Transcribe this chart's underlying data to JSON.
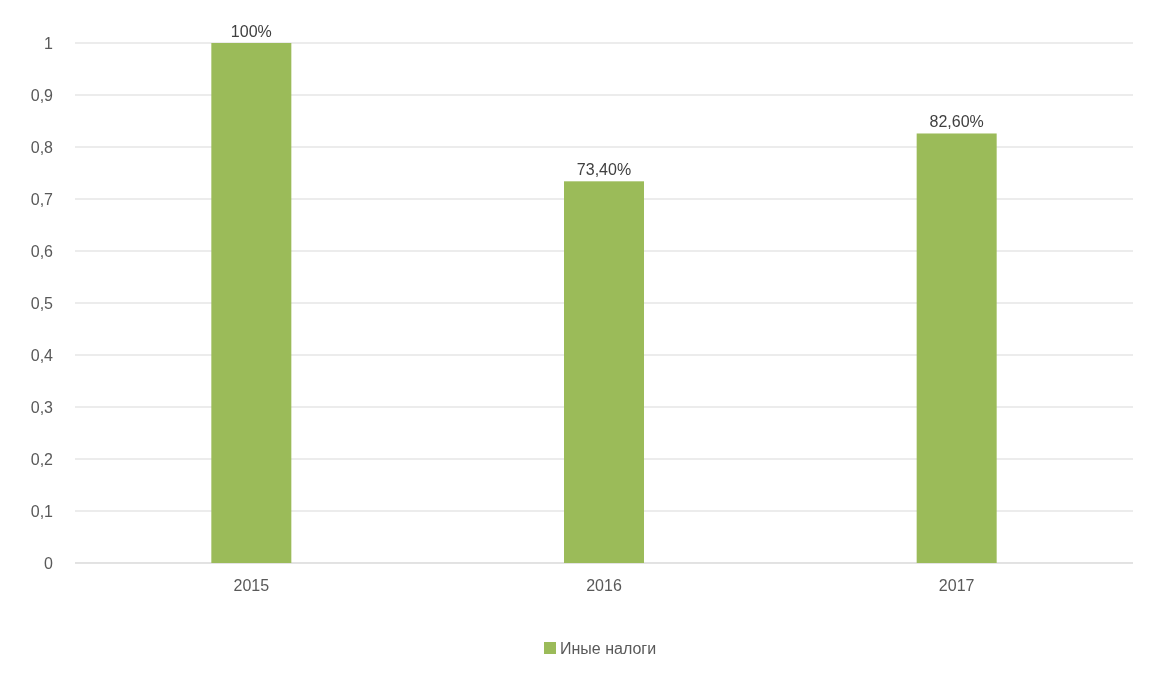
{
  "chart_data": {
    "type": "bar",
    "categories": [
      "2015",
      "2016",
      "2017"
    ],
    "series": [
      {
        "name": "Иные налоги",
        "color": "#9bbb59",
        "values": [
          1,
          0.734,
          0.826
        ],
        "value_labels": [
          "100%",
          "73,40%",
          "82,60%"
        ]
      }
    ],
    "ylim": [
      0,
      1
    ],
    "yticks": [
      0,
      {
        "value": 0.1,
        "label": "0,1"
      },
      {
        "value": 0.2,
        "label": "0,2"
      },
      {
        "value": 0.3,
        "label": "0,3"
      },
      {
        "value": 0.4,
        "label": "0,4"
      },
      {
        "value": 0.5,
        "label": "0,5"
      },
      {
        "value": 0.6,
        "label": "0,6"
      },
      {
        "value": 0.7,
        "label": "0,7"
      },
      {
        "value": 0.8,
        "label": "0,8"
      },
      {
        "value": 0.9,
        "label": "0,9"
      },
      1
    ],
    "grid": "y",
    "legend": "bottom"
  }
}
